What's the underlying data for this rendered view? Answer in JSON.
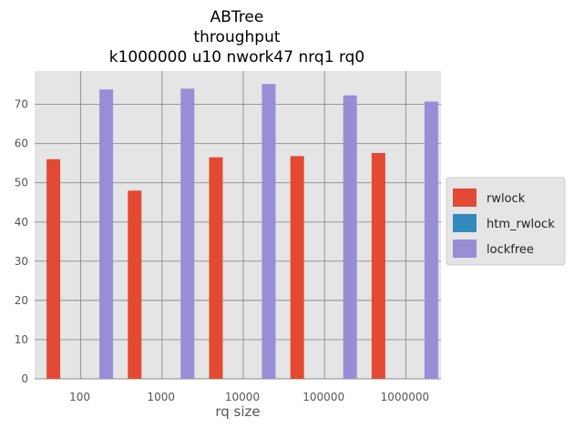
{
  "chart_data": {
    "type": "bar",
    "title": [
      "ABTree",
      "throughput",
      "k1000000 u10 nwork47 nrq1 rq0"
    ],
    "xlabel": "rq size",
    "ylabel": "",
    "categories": [
      "100",
      "1000",
      "10000",
      "100000",
      "1000000"
    ],
    "series": [
      {
        "name": "rwlock",
        "color": "#e24a33",
        "values": [
          56.0,
          48.0,
          56.5,
          56.8,
          57.6
        ]
      },
      {
        "name": "htm_rwlock",
        "color": "#348abd",
        "values": [
          0,
          0,
          0,
          0,
          0
        ]
      },
      {
        "name": "lockfree",
        "color": "#988ed5",
        "values": [
          73.8,
          74.0,
          75.2,
          72.3,
          70.7
        ]
      }
    ],
    "ylim": [
      0,
      78.5
    ],
    "yticks": [
      0,
      10,
      20,
      30,
      40,
      50,
      60,
      70
    ],
    "grid": true,
    "legend": "outside-right"
  }
}
